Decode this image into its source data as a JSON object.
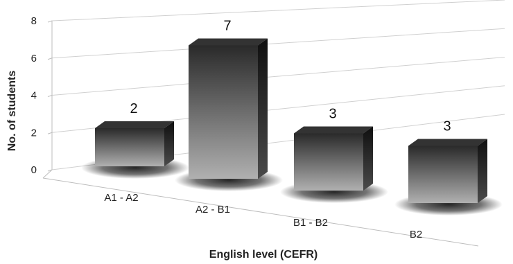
{
  "chart_data": {
    "type": "bar",
    "categories": [
      "A1 - A2",
      "A2 - B1",
      "B1 - B2",
      "B2"
    ],
    "values": [
      2,
      7,
      3,
      3
    ],
    "data_labels": [
      "2",
      "7",
      "3",
      "3"
    ],
    "title": "",
    "xlabel": "English level (CEFR)",
    "ylabel": "No. of students",
    "ylim": [
      0,
      8
    ],
    "yticks": [
      "0",
      "2",
      "4",
      "6",
      "8"
    ],
    "grid": true,
    "legend": "none",
    "style": "3d-column",
    "colors": {
      "bar_dark": "#1a1a1a",
      "bar_light": "#a8a8a8",
      "grid": "#d0d0d0",
      "axis": "#bdbdbd"
    }
  }
}
